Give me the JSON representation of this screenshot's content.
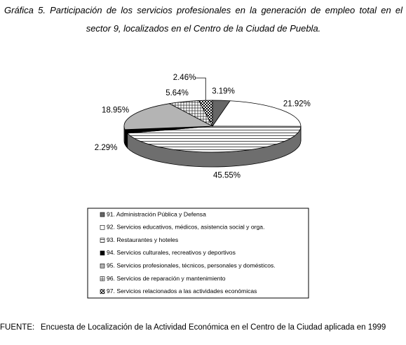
{
  "chart_data": {
    "type": "pie",
    "title": "Gráfica 5. Participación de los servicios profesionales en la generación de empleo total en el sector 9, localizados en el Centro de la Ciudad de Puebla.",
    "categories": [
      "91. Administración Pública y Defensa",
      "92. Servicios educativos, médicos, asistencia social y orga.",
      "93. Restaurantes y hoteles",
      "94. Servicios culturales, recreativos y deportivos",
      "95. Servicios profesionales, técnicos, personales y domésticos.",
      "96. Servicios de reparación y mantenimiento",
      "97. Servicios relacionados a las actividades económicas"
    ],
    "values": [
      3.19,
      21.92,
      45.55,
      2.29,
      18.95,
      5.64,
      2.46
    ],
    "value_labels": [
      "3.19%",
      "21.92%",
      "45.55%",
      "2.29%",
      "18.95%",
      "5.64%",
      "2.46%"
    ],
    "colors": [
      "#666666",
      "#ffffff",
      "#ffffff",
      "#000000",
      "#b4b4b4",
      "#ffffff",
      "#ffffff"
    ],
    "legend": "bottom",
    "source_label": "FUENTE:",
    "source": "Encuesta de Localización de la Actividad Económica en el Centro de la Ciudad aplicada en 1999"
  }
}
